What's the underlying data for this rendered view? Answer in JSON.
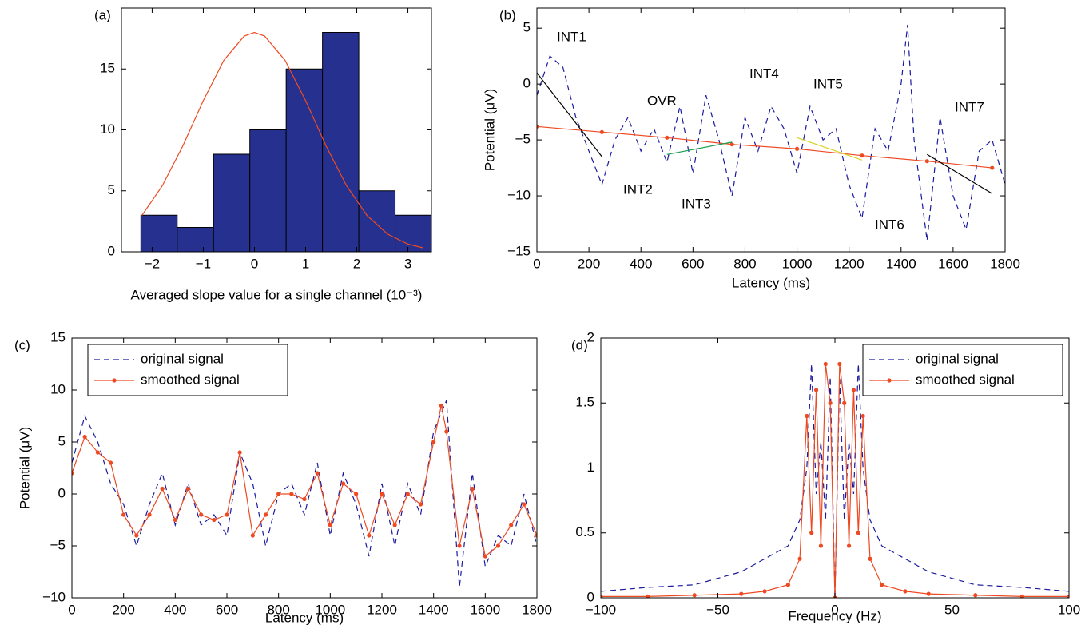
{
  "chart_data": [
    {
      "type": "histogram",
      "label": "(a)",
      "xlabel": "Averaged slope value for a single channel (10⁻³)",
      "bins": [
        -2.22,
        -1.51,
        -0.8,
        -0.09,
        0.62,
        1.33,
        2.04,
        2.75,
        3.46
      ],
      "values": [
        3,
        2,
        8,
        10,
        15,
        18,
        5,
        3
      ],
      "color": "#26318f",
      "curve": {
        "color": "#ee4a22",
        "x": [
          -2.2,
          -1.8,
          -1.4,
          -1,
          -0.6,
          -0.2,
          0,
          0.2,
          0.6,
          1,
          1.4,
          1.8,
          2.2,
          2.6,
          3,
          3.3
        ],
        "values": [
          2.98,
          5.42,
          8.68,
          12.4,
          15.7,
          17.7,
          18,
          17.7,
          15.7,
          12.4,
          8.68,
          5.42,
          2.98,
          1.46,
          0.63,
          0.32
        ]
      },
      "xlim": [
        -2.6,
        3.46
      ],
      "ylim": [
        0,
        20
      ],
      "xticks": [
        {
          "value": -2,
          "label": "−2"
        },
        {
          "value": -1,
          "label": "−1"
        },
        0,
        1,
        2,
        3
      ],
      "yticks": [
        0,
        5,
        10,
        15
      ]
    },
    {
      "type": "line",
      "label": "(b)",
      "xlabel": "Latency (ms)",
      "ylabel": "Potential (μV)",
      "xlim": [
        0,
        1800
      ],
      "ylim": [
        -15,
        6.8
      ],
      "xticks": [
        0,
        200,
        400,
        600,
        800,
        1000,
        1200,
        1400,
        1600,
        1800
      ],
      "yticks": [
        {
          "value": -15,
          "label": "−15"
        },
        {
          "value": -10,
          "label": "−10"
        },
        {
          "value": -5,
          "label": "−5"
        },
        0,
        5
      ],
      "annotations": [
        "INT1",
        "OVR",
        "INT4",
        "INT5",
        "INT7",
        "INT2",
        "INT3",
        "INT6"
      ],
      "series": [
        {
          "color": "#1a1aa0",
          "style": "dashed",
          "x": [
            0,
            50,
            100,
            150,
            200,
            250,
            300,
            350,
            400,
            450,
            500,
            550,
            600,
            650,
            700,
            750,
            800,
            850,
            900,
            950,
            1000,
            1050,
            1100,
            1150,
            1200,
            1250,
            1300,
            1350,
            1400,
            1425,
            1450,
            1500,
            1550,
            1600,
            1650,
            1700,
            1750,
            1800
          ],
          "values": [
            -1,
            2.5,
            1.5,
            -3,
            -6,
            -9,
            -5,
            -3,
            -6,
            -4,
            -7,
            -2,
            -8,
            -1,
            -5,
            -10,
            -3,
            -6,
            -2,
            -4,
            -8,
            -2,
            -5,
            -4,
            -9,
            -12,
            -4,
            -6,
            0,
            5.3,
            -5,
            -14,
            -3,
            -10,
            -13,
            -6,
            -5,
            -9
          ]
        },
        {
          "color": "#ee4a22",
          "style": "solid",
          "marker": true,
          "x": [
            0,
            250,
            500,
            750,
            1000,
            1250,
            1500,
            1750
          ],
          "values": [
            -3.8,
            -4.3,
            -4.8,
            -5.4,
            -5.8,
            -6.4,
            -6.9,
            -7.5
          ]
        },
        {
          "color": "#000000",
          "style": "solid",
          "x": [
            0,
            250
          ],
          "values": [
            1,
            -6.5
          ]
        },
        {
          "color": "#1aa050",
          "style": "solid",
          "x": [
            500,
            750
          ],
          "values": [
            -6.3,
            -5.2
          ]
        },
        {
          "color": "#d8d020",
          "style": "solid",
          "x": [
            1000,
            1250
          ],
          "values": [
            -4.8,
            -6.8
          ]
        },
        {
          "color": "#000000",
          "style": "solid",
          "x": [
            1500,
            1750
          ],
          "values": [
            -6.3,
            -9.8
          ]
        }
      ]
    },
    {
      "type": "line",
      "label": "(c)",
      "xlabel": "Latency (ms)",
      "ylabel": "Potential (μV)",
      "xlim": [
        0,
        1800
      ],
      "ylim": [
        -10,
        15
      ],
      "xticks": [
        0,
        200,
        400,
        600,
        800,
        1000,
        1200,
        1400,
        1600,
        1800
      ],
      "yticks": [
        {
          "value": -10,
          "label": "−10"
        },
        {
          "value": -5,
          "label": "−5"
        },
        0,
        5,
        10,
        15
      ],
      "legend": "upper left",
      "series": [
        {
          "name": "original signal",
          "color": "#1a1aa0",
          "style": "dashed",
          "x": [
            0,
            50,
            100,
            150,
            200,
            250,
            300,
            350,
            400,
            450,
            500,
            550,
            600,
            650,
            700,
            750,
            800,
            850,
            900,
            950,
            1000,
            1050,
            1100,
            1150,
            1200,
            1250,
            1300,
            1350,
            1400,
            1450,
            1500,
            1550,
            1600,
            1650,
            1700,
            1750,
            1800
          ],
          "values": [
            3,
            7.5,
            5,
            1,
            -1,
            -5,
            -1,
            2,
            -3,
            1,
            -3,
            -2,
            -4,
            4,
            1,
            -5,
            0,
            1,
            -2,
            3,
            -4,
            2,
            -1,
            -6,
            1,
            -5,
            1,
            -2,
            6,
            9,
            -9,
            2,
            -7,
            -4,
            -5,
            0,
            -5
          ]
        },
        {
          "name": "smoothed signal",
          "color": "#ee4a22",
          "style": "solid",
          "marker": true,
          "x": [
            0,
            50,
            100,
            150,
            200,
            250,
            300,
            350,
            400,
            450,
            500,
            550,
            600,
            650,
            700,
            750,
            800,
            850,
            900,
            950,
            1000,
            1050,
            1100,
            1150,
            1200,
            1250,
            1300,
            1350,
            1400,
            1430,
            1450,
            1500,
            1550,
            1600,
            1650,
            1700,
            1750,
            1800
          ],
          "values": [
            2,
            5.5,
            4,
            3,
            -2,
            -4,
            -2,
            0.5,
            -2.5,
            0.5,
            -2,
            -2.5,
            -2,
            4,
            -4,
            -2,
            0,
            0,
            -0.5,
            2,
            -3,
            1,
            0,
            -4,
            0,
            -3,
            0,
            -1,
            5,
            8.5,
            6,
            -5,
            0.5,
            -6,
            -5,
            -3,
            -1,
            -4
          ]
        }
      ]
    },
    {
      "type": "line",
      "label": "(d)",
      "xlabel": "Frequency (Hz)",
      "xlim": [
        -100,
        100
      ],
      "ylim": [
        0,
        2
      ],
      "xticks": [
        {
          "value": -100,
          "label": "−100"
        },
        {
          "value": -50,
          "label": "−50"
        },
        0,
        50,
        100
      ],
      "yticks": [
        0,
        0.5,
        1,
        1.5,
        2
      ],
      "legend": "upper right",
      "series": [
        {
          "name": "original signal",
          "color": "#1a1aa0",
          "style": "dashed",
          "x": [
            -100,
            -80,
            -60,
            -40,
            -30,
            -20,
            -15,
            -12,
            -10,
            -8,
            -6,
            -4,
            -2,
            0,
            2,
            4,
            6,
            8,
            10,
            12,
            15,
            20,
            30,
            40,
            60,
            80,
            100
          ],
          "values": [
            0.05,
            0.08,
            0.1,
            0.2,
            0.3,
            0.4,
            0.6,
            1,
            1.8,
            0.8,
            1.2,
            0.6,
            1.7,
            0,
            1.7,
            0.6,
            1.2,
            0.8,
            1.8,
            1,
            0.6,
            0.4,
            0.3,
            0.2,
            0.1,
            0.08,
            0.05
          ]
        },
        {
          "name": "smoothed signal",
          "color": "#ee4a22",
          "style": "solid",
          "marker": true,
          "x": [
            -100,
            -80,
            -60,
            -40,
            -30,
            -20,
            -15,
            -12,
            -10,
            -8,
            -6,
            -4,
            -2,
            0,
            2,
            4,
            6,
            8,
            10,
            12,
            15,
            20,
            30,
            40,
            60,
            80,
            100
          ],
          "values": [
            0.01,
            0.01,
            0.02,
            0.03,
            0.05,
            0.1,
            0.3,
            1.4,
            0.5,
            1.6,
            0.4,
            1.8,
            1.5,
            0,
            1.8,
            1.5,
            0.4,
            1.6,
            0.5,
            1.4,
            0.3,
            0.1,
            0.05,
            0.03,
            0.02,
            0.01,
            0.01
          ]
        }
      ]
    }
  ]
}
